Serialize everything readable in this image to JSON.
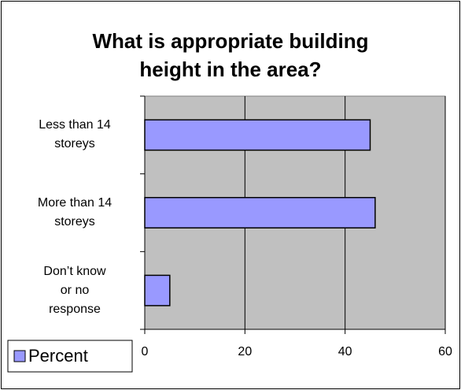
{
  "chart_data": {
    "type": "bar",
    "orientation": "horizontal",
    "title": "What is appropriate building\nheight in the area?",
    "categories": [
      "Less than 14\nstoreys",
      "More than 14\nstoreys",
      "Don’t know\nor no\nresponse"
    ],
    "series": [
      {
        "name": "Percent",
        "color": "#9999ff",
        "values": [
          45,
          46,
          5
        ]
      }
    ],
    "xlim": [
      0,
      60
    ],
    "xticks": [
      0,
      20,
      40,
      60
    ],
    "grid": true,
    "legend": "bottom-left"
  }
}
